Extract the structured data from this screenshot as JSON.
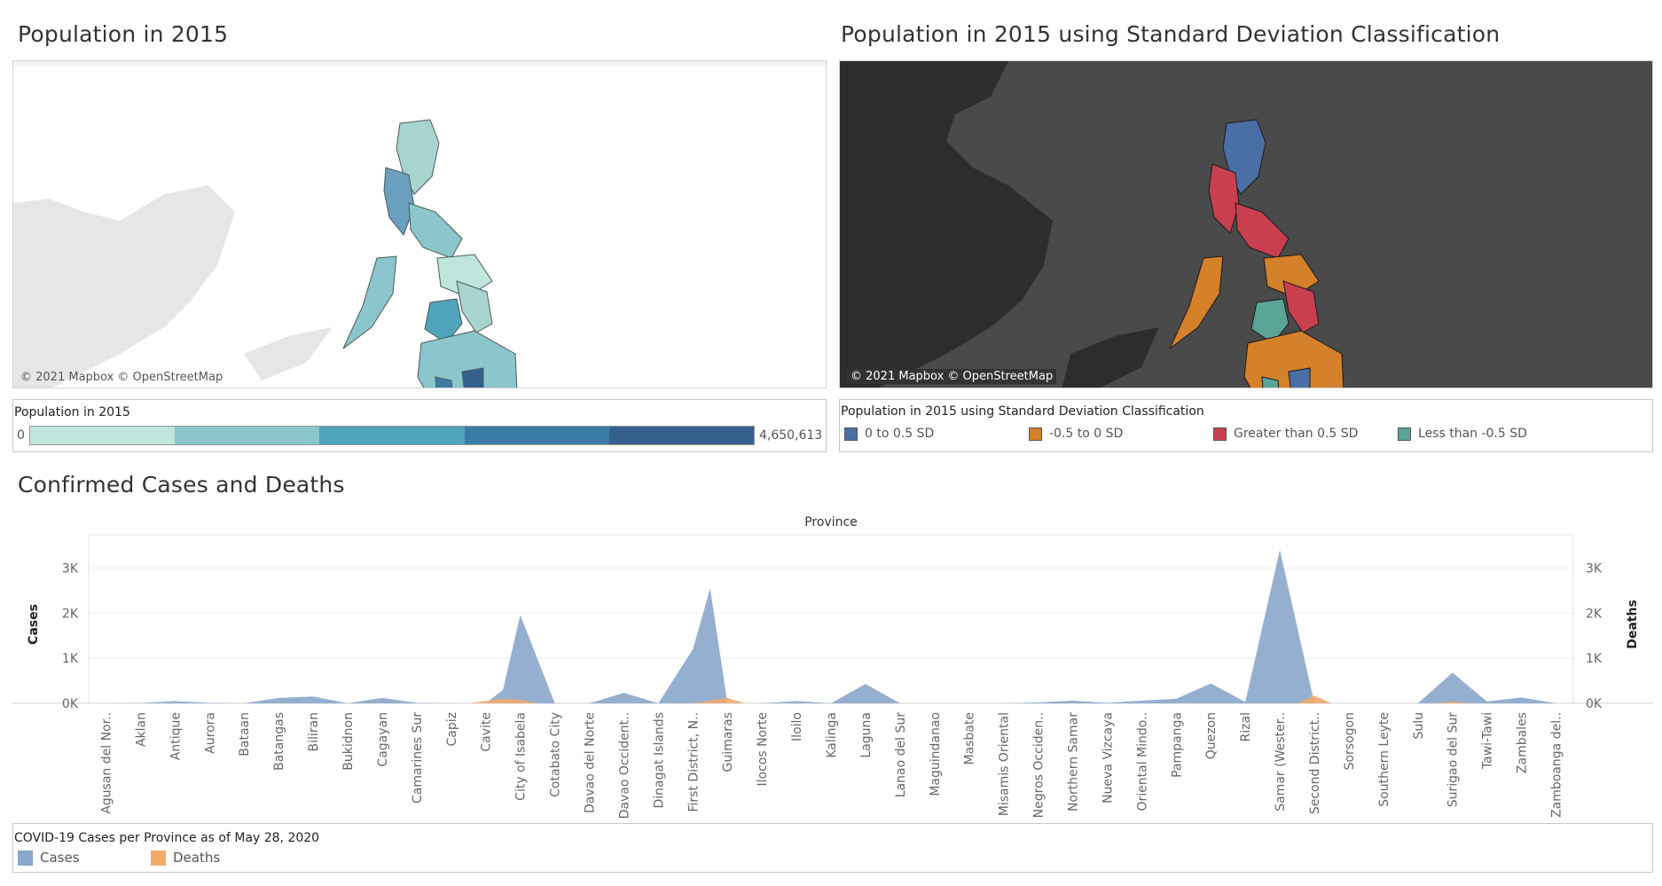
{
  "titles": {
    "pop_map": "Population in 2015",
    "sd_map": "Population in 2015 using Standard Deviation Classification",
    "chart": "Confirmed Cases and Deaths"
  },
  "maps": {
    "credit": "© 2021 Mapbox © OpenStreetMap",
    "pop_legend": {
      "title": "Population in 2015",
      "min": "0",
      "max": "4,650,613",
      "ramp_colors": [
        "#bfe5dc",
        "#8ac6cb",
        "#4fa3bd",
        "#3a7ca3",
        "#355f8c"
      ]
    },
    "sd_legend": {
      "title": "Population in 2015 using Standard Deviation Classification",
      "items": [
        {
          "label": "0 to 0.5 SD",
          "color": "#4a6fa5"
        },
        {
          "label": "-0.5 to 0 SD",
          "color": "#d5802a"
        },
        {
          "label": "Greater than 0.5 SD",
          "color": "#c8404f"
        },
        {
          "label": "Less than -0.5 SD",
          "color": "#5aa397"
        }
      ]
    }
  },
  "chart_legend": {
    "title": "COVID-19 Cases per Province as of May 28, 2020",
    "items": [
      {
        "label": "Cases",
        "color": "#8aa6cc"
      },
      {
        "label": "Deaths",
        "color": "#f0ab6b"
      }
    ]
  },
  "chart_data": {
    "type": "area",
    "header": "Province",
    "ylabel_left": "Cases",
    "ylabel_right": "Deaths",
    "yticks": [
      "0K",
      "1K",
      "2K",
      "3K"
    ],
    "ylim": [
      0,
      3500
    ],
    "categories": [
      "Agusan del Nor..",
      "Aklan",
      "Antique",
      "Aurora",
      "Bataan",
      "Batangas",
      "Biliran",
      "Bukidnon",
      "Cagayan",
      "Camarines Sur",
      "Capiz",
      "Cavite",
      "City of Isabela",
      "Cotabato City",
      "Davao del Norte",
      "Davao Occident..",
      "Dinagat Islands",
      "First District, N..",
      "Guimaras",
      "Ilocos Norte",
      "Iloilo",
      "Kalinga",
      "Laguna",
      "Lanao del Sur",
      "Maguindanao",
      "Masbate",
      "Misamis Oriental",
      "Negros Occiden..",
      "Northern Samar",
      "Nueva Vizcaya",
      "Oriental Mindo..",
      "Pampanga",
      "Quezon",
      "Rizal",
      "Samar (Wester..",
      "Second District..",
      "Sorsogon",
      "Southern Leyte",
      "Sulu",
      "Surigao del Sur",
      "Tawi-Tawi",
      "Zambales",
      "Zamboanga del.."
    ],
    "series": [
      {
        "name": "Cases",
        "color": "#8aa6cc",
        "x": [
          0,
          1,
          2,
          3,
          4,
          5,
          6,
          7,
          8,
          9,
          10,
          11,
          11.5,
          12,
          13,
          14,
          15,
          16,
          17,
          17.5,
          18,
          19,
          20,
          21,
          22,
          23,
          24,
          25,
          26,
          27,
          28,
          29,
          30,
          31,
          32,
          33,
          34,
          35,
          36,
          37,
          38,
          39,
          40,
          41,
          42
        ],
        "values": [
          0,
          5,
          50,
          10,
          0,
          120,
          150,
          0,
          120,
          10,
          0,
          0,
          300,
          1960,
          0,
          0,
          230,
          0,
          1200,
          2550,
          0,
          0,
          50,
          0,
          430,
          0,
          0,
          0,
          0,
          20,
          60,
          10,
          60,
          100,
          440,
          30,
          3400,
          0,
          0,
          0,
          0,
          680,
          40,
          130,
          0
        ]
      },
      {
        "name": "Deaths",
        "color": "#f0ab6b",
        "x": [
          0,
          10.5,
          11.5,
          12,
          12.5,
          17,
          18,
          18.5,
          34.5,
          35,
          35.5,
          38.5,
          39,
          39.5,
          42
        ],
        "values": [
          0,
          0,
          100,
          80,
          0,
          0,
          120,
          0,
          0,
          170,
          0,
          0,
          40,
          0,
          0
        ]
      }
    ]
  }
}
